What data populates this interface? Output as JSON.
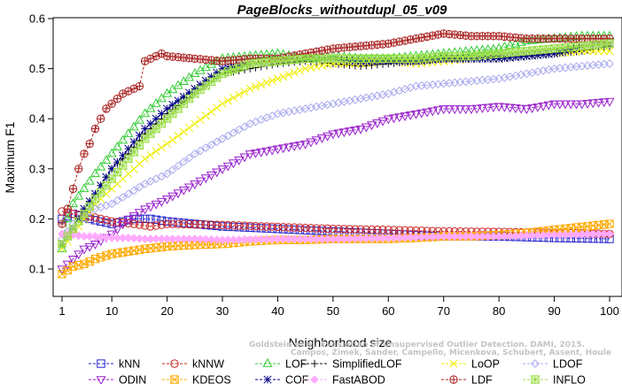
{
  "chart_data": {
    "type": "line",
    "title": "PageBlocks_withoutdupl_05_v09",
    "xlabel": "Neighborhood size",
    "ylabel": "Maximum F1",
    "xlim": [
      1,
      100
    ],
    "ylim": [
      0.07,
      0.6
    ],
    "xticks": [
      1,
      10,
      20,
      30,
      40,
      50,
      60,
      70,
      80,
      90,
      100
    ],
    "yticks": [
      0.1,
      0.2,
      0.3,
      0.4,
      0.5,
      0.6
    ],
    "grid": false,
    "legend_position": "bottom",
    "watermark": [
      "Goldstein et al. Evaluation of Unsupervised Outlier Detection. DAMI, 2015.",
      "Campos, Zimek, Sander, Campello, Micenkova, Schubert, Assent, Houle"
    ],
    "series": [
      {
        "name": "kNN",
        "color": "#2222cc",
        "marker": "square",
        "points": [
          [
            1,
            0.2
          ],
          [
            3,
            0.21
          ],
          [
            6,
            0.2
          ],
          [
            10,
            0.19
          ],
          [
            14,
            0.2
          ],
          [
            17,
            0.2
          ],
          [
            20,
            0.195
          ],
          [
            25,
            0.19
          ],
          [
            30,
            0.185
          ],
          [
            40,
            0.18
          ],
          [
            50,
            0.175
          ],
          [
            60,
            0.17
          ],
          [
            70,
            0.165
          ],
          [
            80,
            0.165
          ],
          [
            90,
            0.162
          ],
          [
            100,
            0.16
          ]
        ]
      },
      {
        "name": "kNNW",
        "color": "#cc2222",
        "marker": "circle",
        "points": [
          [
            1,
            0.215
          ],
          [
            3,
            0.21
          ],
          [
            6,
            0.205
          ],
          [
            10,
            0.195
          ],
          [
            14,
            0.19
          ],
          [
            17,
            0.185
          ],
          [
            20,
            0.19
          ],
          [
            30,
            0.188
          ],
          [
            40,
            0.184
          ],
          [
            50,
            0.18
          ],
          [
            60,
            0.178
          ],
          [
            70,
            0.175
          ],
          [
            80,
            0.174
          ],
          [
            90,
            0.172
          ],
          [
            100,
            0.17
          ]
        ]
      },
      {
        "name": "LOF",
        "color": "#33cc33",
        "marker": "triangle",
        "points": [
          [
            1,
            0.14
          ],
          [
            2,
            0.2
          ],
          [
            3,
            0.23
          ],
          [
            5,
            0.26
          ],
          [
            7,
            0.29
          ],
          [
            10,
            0.33
          ],
          [
            13,
            0.37
          ],
          [
            16,
            0.41
          ],
          [
            20,
            0.45
          ],
          [
            25,
            0.49
          ],
          [
            30,
            0.52
          ],
          [
            35,
            0.525
          ],
          [
            40,
            0.53
          ],
          [
            45,
            0.52
          ],
          [
            50,
            0.525
          ],
          [
            55,
            0.52
          ],
          [
            60,
            0.52
          ],
          [
            65,
            0.525
          ],
          [
            70,
            0.53
          ],
          [
            75,
            0.535
          ],
          [
            80,
            0.54
          ],
          [
            85,
            0.555
          ],
          [
            90,
            0.56
          ],
          [
            95,
            0.565
          ],
          [
            100,
            0.565
          ]
        ]
      },
      {
        "name": "SimplifiedLOF",
        "color": "#111111",
        "marker": "plus",
        "points": [
          [
            1,
            0.15
          ],
          [
            3,
            0.18
          ],
          [
            5,
            0.22
          ],
          [
            7,
            0.25
          ],
          [
            10,
            0.3
          ],
          [
            13,
            0.33
          ],
          [
            16,
            0.37
          ],
          [
            20,
            0.41
          ],
          [
            25,
            0.45
          ],
          [
            30,
            0.49
          ],
          [
            35,
            0.5
          ],
          [
            40,
            0.51
          ],
          [
            45,
            0.515
          ],
          [
            50,
            0.51
          ],
          [
            55,
            0.505
          ],
          [
            60,
            0.51
          ],
          [
            65,
            0.515
          ],
          [
            70,
            0.52
          ],
          [
            75,
            0.52
          ],
          [
            80,
            0.525
          ],
          [
            85,
            0.525
          ],
          [
            90,
            0.53
          ],
          [
            95,
            0.535
          ],
          [
            100,
            0.545
          ]
        ]
      },
      {
        "name": "LoOP",
        "color": "#eeee00",
        "marker": "x",
        "points": [
          [
            1,
            0.14
          ],
          [
            3,
            0.17
          ],
          [
            5,
            0.2
          ],
          [
            7,
            0.23
          ],
          [
            10,
            0.26
          ],
          [
            13,
            0.29
          ],
          [
            16,
            0.32
          ],
          [
            20,
            0.35
          ],
          [
            25,
            0.39
          ],
          [
            30,
            0.43
          ],
          [
            35,
            0.46
          ],
          [
            40,
            0.48
          ],
          [
            45,
            0.5
          ],
          [
            50,
            0.51
          ],
          [
            55,
            0.51
          ],
          [
            60,
            0.515
          ],
          [
            65,
            0.51
          ],
          [
            70,
            0.515
          ],
          [
            75,
            0.52
          ],
          [
            80,
            0.52
          ],
          [
            85,
            0.525
          ],
          [
            90,
            0.53
          ],
          [
            95,
            0.535
          ],
          [
            100,
            0.535
          ]
        ]
      },
      {
        "name": "LDOF",
        "color": "#aaaaee",
        "marker": "diamond",
        "points": [
          [
            1,
            0.16
          ],
          [
            3,
            0.19
          ],
          [
            5,
            0.21
          ],
          [
            7,
            0.22
          ],
          [
            10,
            0.23
          ],
          [
            13,
            0.25
          ],
          [
            16,
            0.27
          ],
          [
            20,
            0.29
          ],
          [
            25,
            0.33
          ],
          [
            30,
            0.36
          ],
          [
            35,
            0.39
          ],
          [
            40,
            0.41
          ],
          [
            45,
            0.42
          ],
          [
            50,
            0.43
          ],
          [
            55,
            0.44
          ],
          [
            60,
            0.45
          ],
          [
            65,
            0.465
          ],
          [
            70,
            0.47
          ],
          [
            75,
            0.475
          ],
          [
            80,
            0.48
          ],
          [
            85,
            0.49
          ],
          [
            90,
            0.5
          ],
          [
            95,
            0.505
          ],
          [
            100,
            0.51
          ]
        ]
      },
      {
        "name": "ODIN",
        "color": "#9922cc",
        "marker": "triangle-down",
        "points": [
          [
            1,
            0.1
          ],
          [
            3,
            0.12
          ],
          [
            5,
            0.14
          ],
          [
            7,
            0.15
          ],
          [
            10,
            0.17
          ],
          [
            13,
            0.2
          ],
          [
            16,
            0.22
          ],
          [
            20,
            0.24
          ],
          [
            25,
            0.27
          ],
          [
            30,
            0.3
          ],
          [
            35,
            0.33
          ],
          [
            40,
            0.34
          ],
          [
            45,
            0.35
          ],
          [
            50,
            0.37
          ],
          [
            55,
            0.38
          ],
          [
            60,
            0.4
          ],
          [
            65,
            0.41
          ],
          [
            70,
            0.42
          ],
          [
            75,
            0.42
          ],
          [
            80,
            0.425
          ],
          [
            85,
            0.42
          ],
          [
            90,
            0.43
          ],
          [
            95,
            0.43
          ],
          [
            100,
            0.435
          ]
        ]
      },
      {
        "name": "KDEOS",
        "color": "#ffaa00",
        "marker": "square-x",
        "points": [
          [
            1,
            0.09
          ],
          [
            3,
            0.105
          ],
          [
            5,
            0.11
          ],
          [
            7,
            0.12
          ],
          [
            10,
            0.13
          ],
          [
            13,
            0.135
          ],
          [
            16,
            0.14
          ],
          [
            20,
            0.145
          ],
          [
            25,
            0.148
          ],
          [
            30,
            0.15
          ],
          [
            35,
            0.155
          ],
          [
            40,
            0.158
          ],
          [
            45,
            0.158
          ],
          [
            50,
            0.16
          ],
          [
            55,
            0.16
          ],
          [
            60,
            0.16
          ],
          [
            65,
            0.162
          ],
          [
            70,
            0.165
          ],
          [
            75,
            0.165
          ],
          [
            80,
            0.168
          ],
          [
            85,
            0.172
          ],
          [
            90,
            0.178
          ],
          [
            95,
            0.184
          ],
          [
            100,
            0.19
          ]
        ]
      },
      {
        "name": "COF",
        "color": "#000088",
        "marker": "asterisk",
        "points": [
          [
            1,
            0.15
          ],
          [
            3,
            0.18
          ],
          [
            5,
            0.22
          ],
          [
            7,
            0.25
          ],
          [
            10,
            0.3
          ],
          [
            13,
            0.34
          ],
          [
            16,
            0.38
          ],
          [
            20,
            0.42
          ],
          [
            25,
            0.46
          ],
          [
            30,
            0.5
          ],
          [
            35,
            0.51
          ],
          [
            40,
            0.515
          ],
          [
            45,
            0.52
          ],
          [
            50,
            0.52
          ],
          [
            55,
            0.515
          ],
          [
            60,
            0.515
          ],
          [
            65,
            0.515
          ],
          [
            70,
            0.52
          ],
          [
            75,
            0.52
          ],
          [
            80,
            0.52
          ],
          [
            85,
            0.525
          ],
          [
            90,
            0.53
          ],
          [
            95,
            0.545
          ],
          [
            100,
            0.55
          ]
        ]
      },
      {
        "name": "FastABOD",
        "color": "#ffaaff",
        "marker": "diamond-filled",
        "points": [
          [
            1,
            0.17
          ],
          [
            3,
            0.168
          ],
          [
            5,
            0.165
          ],
          [
            7,
            0.165
          ],
          [
            10,
            0.162
          ],
          [
            13,
            0.162
          ],
          [
            16,
            0.16
          ],
          [
            20,
            0.16
          ],
          [
            25,
            0.16
          ],
          [
            30,
            0.158
          ],
          [
            40,
            0.16
          ],
          [
            50,
            0.16
          ],
          [
            60,
            0.162
          ],
          [
            70,
            0.165
          ],
          [
            80,
            0.165
          ],
          [
            90,
            0.168
          ],
          [
            100,
            0.17
          ]
        ]
      },
      {
        "name": "LDF",
        "color": "#aa2222",
        "marker": "circle-plus",
        "points": [
          [
            1,
            0.19
          ],
          [
            2,
            0.22
          ],
          [
            3,
            0.26
          ],
          [
            4,
            0.3
          ],
          [
            5,
            0.33
          ],
          [
            6,
            0.35
          ],
          [
            7,
            0.38
          ],
          [
            8,
            0.4
          ],
          [
            9,
            0.42
          ],
          [
            10,
            0.43
          ],
          [
            11,
            0.44
          ],
          [
            12,
            0.45
          ],
          [
            13,
            0.455
          ],
          [
            14,
            0.46
          ],
          [
            15,
            0.465
          ],
          [
            16,
            0.515
          ],
          [
            17,
            0.52
          ],
          [
            18,
            0.525
          ],
          [
            19,
            0.53
          ],
          [
            20,
            0.525
          ],
          [
            25,
            0.52
          ],
          [
            30,
            0.515
          ],
          [
            35,
            0.52
          ],
          [
            40,
            0.52
          ],
          [
            45,
            0.53
          ],
          [
            50,
            0.54
          ],
          [
            55,
            0.545
          ],
          [
            60,
            0.55
          ],
          [
            65,
            0.56
          ],
          [
            70,
            0.57
          ],
          [
            75,
            0.565
          ],
          [
            80,
            0.565
          ],
          [
            85,
            0.56
          ],
          [
            90,
            0.56
          ],
          [
            95,
            0.56
          ],
          [
            100,
            0.56
          ]
        ]
      },
      {
        "name": "INFLO",
        "color": "#99dd44",
        "marker": "square-asterisk",
        "points": [
          [
            1,
            0.15
          ],
          [
            3,
            0.18
          ],
          [
            5,
            0.21
          ],
          [
            7,
            0.24
          ],
          [
            10,
            0.28
          ],
          [
            13,
            0.32
          ],
          [
            16,
            0.36
          ],
          [
            20,
            0.4
          ],
          [
            25,
            0.45
          ],
          [
            30,
            0.49
          ],
          [
            35,
            0.51
          ],
          [
            40,
            0.515
          ],
          [
            45,
            0.52
          ],
          [
            50,
            0.52
          ],
          [
            55,
            0.52
          ],
          [
            60,
            0.52
          ],
          [
            65,
            0.52
          ],
          [
            70,
            0.525
          ],
          [
            75,
            0.525
          ],
          [
            80,
            0.53
          ],
          [
            85,
            0.535
          ],
          [
            90,
            0.54
          ],
          [
            95,
            0.545
          ],
          [
            100,
            0.55
          ]
        ]
      }
    ]
  }
}
